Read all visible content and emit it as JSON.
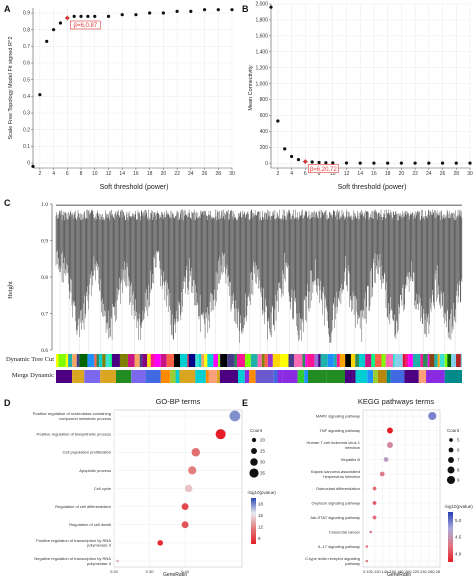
{
  "panels": {
    "a": "A",
    "b": "B",
    "c": "C",
    "d": "D",
    "e": "E"
  },
  "chart_data": [
    {
      "id": "A",
      "type": "scatter",
      "xlabel": "Soft threshold (power)",
      "ylabel": "Scale Free Topology Model Fit signed R^2",
      "xlim": [
        1,
        30
      ],
      "ylim": [
        -0.03,
        0.93
      ],
      "xticks": [
        2,
        4,
        6,
        8,
        10,
        12,
        14,
        16,
        18,
        20,
        22,
        24,
        26,
        28,
        30
      ],
      "yticks": [
        0,
        0.1,
        0.2,
        0.3,
        0.4,
        0.5,
        0.6,
        0.7,
        0.8,
        0.9
      ],
      "ytick_labels": [
        "0",
        "0.1",
        "0.2",
        "0.3",
        "0.4",
        "0.5",
        "0.6",
        "0.7",
        "0.8",
        "0.9"
      ],
      "x": [
        1,
        2,
        3,
        4,
        5,
        6,
        7,
        8,
        9,
        10,
        12,
        14,
        16,
        18,
        20,
        22,
        24,
        26,
        28,
        30
      ],
      "y": [
        -0.02,
        0.41,
        0.73,
        0.8,
        0.84,
        0.87,
        0.88,
        0.88,
        0.88,
        0.88,
        0.88,
        0.89,
        0.89,
        0.9,
        0.9,
        0.91,
        0.91,
        0.92,
        0.92,
        0.92
      ],
      "highlight": {
        "x": 6,
        "y": 0.87,
        "label": "β=6,0.87"
      }
    },
    {
      "id": "B",
      "type": "scatter",
      "xlabel": "Soft threshold (power)",
      "ylabel": "Mean Connectivity",
      "xlim": [
        1,
        30
      ],
      "ylim": [
        -60,
        2000
      ],
      "xticks": [
        2,
        4,
        6,
        8,
        10,
        12,
        14,
        16,
        18,
        20,
        22,
        24,
        26,
        28,
        30
      ],
      "yticks": [
        0,
        200,
        400,
        600,
        800,
        1000,
        1200,
        1400,
        1600,
        1800,
        2000
      ],
      "ytick_labels": [
        "0",
        "200",
        "400",
        "600",
        "800",
        "1,000",
        "1,200",
        "1,400",
        "1,600",
        "1,800",
        "2,000"
      ],
      "x": [
        1,
        2,
        3,
        4,
        5,
        6,
        7,
        8,
        9,
        10,
        12,
        14,
        16,
        18,
        20,
        22,
        24,
        26,
        28,
        30
      ],
      "y": [
        1960,
        530,
        180,
        85,
        45,
        20.72,
        15,
        10,
        7,
        5,
        3,
        2,
        2,
        1,
        1,
        1,
        1,
        1,
        1,
        1
      ],
      "highlight": {
        "x": 6,
        "y": 20.72,
        "label": "β=6,20.72"
      }
    },
    {
      "id": "C",
      "type": "dendrogram",
      "ylabel": "Height",
      "ylim": [
        0.6,
        1.0
      ],
      "yticks": [
        0.6,
        0.7,
        0.8,
        0.9,
        1.0
      ],
      "ytick_labels": [
        "0.6",
        "0.7",
        "0.8",
        "0.9",
        "1.0"
      ],
      "tracks": [
        "Dynamic Tree Cut",
        "Merge Dynamic"
      ]
    },
    {
      "id": "D",
      "type": "scatter",
      "title": "GO-BP terms",
      "xlabel": "GeneRatio",
      "xlim": [
        0.2,
        0.56
      ],
      "xticks": [
        0.2,
        0.3,
        0.4
      ],
      "xtick_labels": [
        "0.20",
        "0.30",
        "0.40"
      ],
      "categories": [
        "Positive regulation of nucleobase-containing compound metabolic process",
        "Positive regulation of biosynthetic process",
        "Cell population proliferation",
        "Apoptotic process",
        "Cell cycle",
        "Regulation of cell differentiation",
        "Regulation of cell death",
        "Positive regulation of transcription by RNA polymerase II",
        "Negative regulation of transcription by RNA polymerase II"
      ],
      "x": [
        0.54,
        0.5,
        0.43,
        0.42,
        0.41,
        0.4,
        0.4,
        0.33,
        0.21
      ],
      "count": [
        40,
        38,
        33,
        32,
        30,
        28,
        28,
        24,
        15
      ],
      "neglog10p": [
        16.5,
        8,
        11,
        11.5,
        13.5,
        9.5,
        10,
        8.5,
        13
      ],
      "size_legend": {
        "title": "Count",
        "values": [
          20,
          25,
          30,
          35
        ]
      },
      "color_legend": {
        "title": "-log10(pvalue)",
        "ticks": [
          "9",
          "12",
          "15",
          "18"
        ],
        "range": [
          8,
          18
        ]
      }
    },
    {
      "id": "E",
      "type": "scatter",
      "title": "KEGG pathways terms",
      "xlabel": "GeneRatio",
      "xlim": [
        0.09,
        0.29
      ],
      "xticks": [
        0.1,
        0.12,
        0.14,
        0.16,
        0.18,
        0.2,
        0.22,
        0.24,
        0.26,
        0.28
      ],
      "xtick_labels": [
        "0.10",
        "0.12",
        "0.14",
        "0.16",
        "0.18",
        "0.20",
        "0.22",
        "0.24",
        "0.26",
        "0.28"
      ],
      "categories": [
        "MAPK signaling pathway",
        "TNF signaling pathway",
        "Human T-cell leukemia virus 1 infection",
        "Hepatitis B",
        "Kaposi sarcoma-associated herpesvirus infection",
        "Osteoclast differentiation",
        "Oxytocin signaling pathway",
        "Jak-STAT signaling pathway",
        "Colorectal cancer",
        "IL-17 signaling pathway",
        "C-type lectin receptor signaling pathway"
      ],
      "x": [
        0.27,
        0.16,
        0.16,
        0.15,
        0.14,
        0.12,
        0.12,
        0.12,
        0.11,
        0.1,
        0.1
      ],
      "count": [
        9,
        7,
        7,
        6,
        6,
        5,
        5,
        5,
        4,
        4,
        4
      ],
      "neglog10p": [
        4.9,
        3.0,
        4.4,
        4.6,
        4.3,
        4.2,
        4.1,
        4.2,
        4.3,
        4.25,
        4.3
      ],
      "size_legend": {
        "title": "Count",
        "values": [
          5,
          6,
          7,
          8,
          9
        ]
      },
      "color_legend": {
        "title": "-log10(pvalue)",
        "ticks": [
          "4.0",
          "4.5",
          "5.0"
        ],
        "range": [
          3.8,
          5.2
        ]
      }
    }
  ]
}
